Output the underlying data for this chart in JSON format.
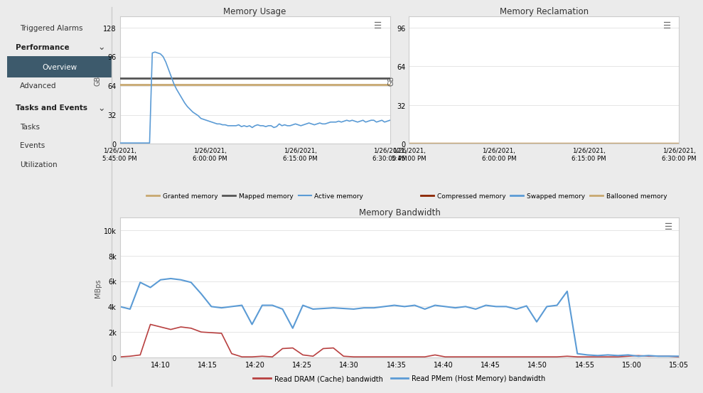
{
  "sidebar": {
    "bg_color": "#f0f0f0",
    "highlight_color": "#3d5a6c",
    "border_color": "#cccccc"
  },
  "memory_usage": {
    "title": "Memory Usage",
    "ylabel": "GB",
    "yticks": [
      0,
      32,
      64,
      96,
      128
    ],
    "xtick_labels": [
      "1/26/2021,\n5:45:00 PM",
      "1/26/2021,\n6:00:00 PM",
      "1/26/2021,\n6:15:00 PM",
      "1/26/2021,\n6:30:00 PM"
    ],
    "granted_color": "#c8a870",
    "mapped_color": "#555555",
    "active_color": "#5b9bd5",
    "granted_value": 65,
    "mapped_value": 72,
    "active_data_x": [
      0,
      1,
      2,
      3,
      4,
      5,
      6,
      7,
      8,
      9,
      10,
      11,
      12,
      13,
      14,
      15,
      16,
      17,
      18,
      19,
      20,
      21,
      22,
      23,
      24,
      25,
      26,
      27,
      28,
      29,
      30,
      31,
      32,
      33,
      34,
      35,
      36,
      37,
      38,
      39,
      40,
      41,
      42,
      43,
      44,
      45,
      46,
      47,
      48,
      49,
      50,
      51,
      52,
      53,
      54,
      55,
      56,
      57,
      58,
      59,
      60,
      61,
      62,
      63,
      64,
      65,
      66,
      67,
      68,
      69,
      70,
      71,
      72,
      73,
      74,
      75,
      76,
      77,
      78,
      79,
      80,
      81,
      82,
      83,
      84,
      85,
      86,
      87,
      88,
      89,
      90,
      91,
      92,
      93,
      94,
      95,
      96,
      97,
      98,
      99,
      100
    ],
    "active_data_y": [
      1,
      1,
      1,
      1,
      1,
      1,
      1,
      1,
      1,
      1,
      1,
      1,
      100,
      101,
      100,
      99,
      96,
      90,
      82,
      74,
      66,
      60,
      55,
      50,
      45,
      41,
      38,
      35,
      33,
      31,
      28,
      27,
      26,
      25,
      24,
      23,
      22,
      22,
      21,
      21,
      20,
      20,
      20,
      20,
      21,
      19,
      20,
      19,
      20,
      18,
      20,
      21,
      20,
      20,
      19,
      20,
      20,
      18,
      19,
      22,
      20,
      21,
      20,
      20,
      21,
      22,
      21,
      20,
      21,
      22,
      23,
      22,
      21,
      22,
      23,
      22,
      22,
      23,
      24,
      24,
      24,
      25,
      24,
      25,
      26,
      25,
      26,
      25,
      24,
      25,
      26,
      24,
      25,
      26,
      26,
      24,
      25,
      26,
      24,
      25,
      26
    ]
  },
  "memory_reclamation": {
    "title": "Memory Reclamation",
    "ylabel": "GB",
    "yticks": [
      0,
      32,
      64,
      96
    ],
    "xtick_labels": [
      "1/26/2021,\n5:45:00 PM",
      "1/26/2021,\n6:00:00 PM",
      "1/26/2021,\n6:15:00 PM",
      "1/26/2021,\n6:30:00 PM"
    ],
    "compressed_color": "#8b2500",
    "swapped_color": "#5b9bd5",
    "ballooned_color": "#c8a870"
  },
  "memory_bandwidth": {
    "title": "Memory Bandwidth",
    "ylabel": "MBps",
    "yticks": [
      0,
      2000,
      4000,
      6000,
      8000,
      10000
    ],
    "ytick_labels": [
      "0",
      "2k",
      "4k",
      "6k",
      "8k",
      "10k"
    ],
    "xtick_labels": [
      "14:10",
      "14:15",
      "14:20",
      "14:25",
      "14:30",
      "14:35",
      "14:40",
      "14:45",
      "14:50",
      "14:55",
      "15:00",
      "15:05"
    ],
    "dram_color": "#b84040",
    "pmem_color": "#5b9bd5",
    "dram_y": [
      50,
      100,
      200,
      2600,
      2400,
      2200,
      2400,
      2300,
      2000,
      1950,
      1900,
      300,
      50,
      50,
      100,
      50,
      700,
      750,
      200,
      100,
      700,
      750,
      100,
      50,
      50,
      50,
      50,
      50,
      50,
      50,
      50,
      200,
      50,
      50,
      50,
      50,
      50,
      50,
      50,
      50,
      50,
      50,
      50,
      50,
      100,
      50,
      50,
      50,
      50,
      50,
      100,
      150,
      100,
      100,
      100,
      50
    ],
    "pmem_y": [
      4000,
      3800,
      5900,
      5500,
      6100,
      6200,
      6100,
      5900,
      5000,
      4000,
      3900,
      4000,
      4100,
      2600,
      4100,
      4100,
      3800,
      2300,
      4100,
      3800,
      3850,
      3900,
      3850,
      3800,
      3900,
      3900,
      4000,
      4100,
      4000,
      4100,
      3800,
      4100,
      4000,
      3900,
      4000,
      3800,
      4100,
      4000,
      4000,
      3800,
      4050,
      2800,
      4000,
      4100,
      5200,
      300,
      200,
      150,
      200,
      150,
      200,
      100,
      150,
      100,
      100,
      100
    ]
  },
  "bg_color": "#ebebeb",
  "panel_bg": "#ffffff",
  "grid_color": "#e0e0e0"
}
